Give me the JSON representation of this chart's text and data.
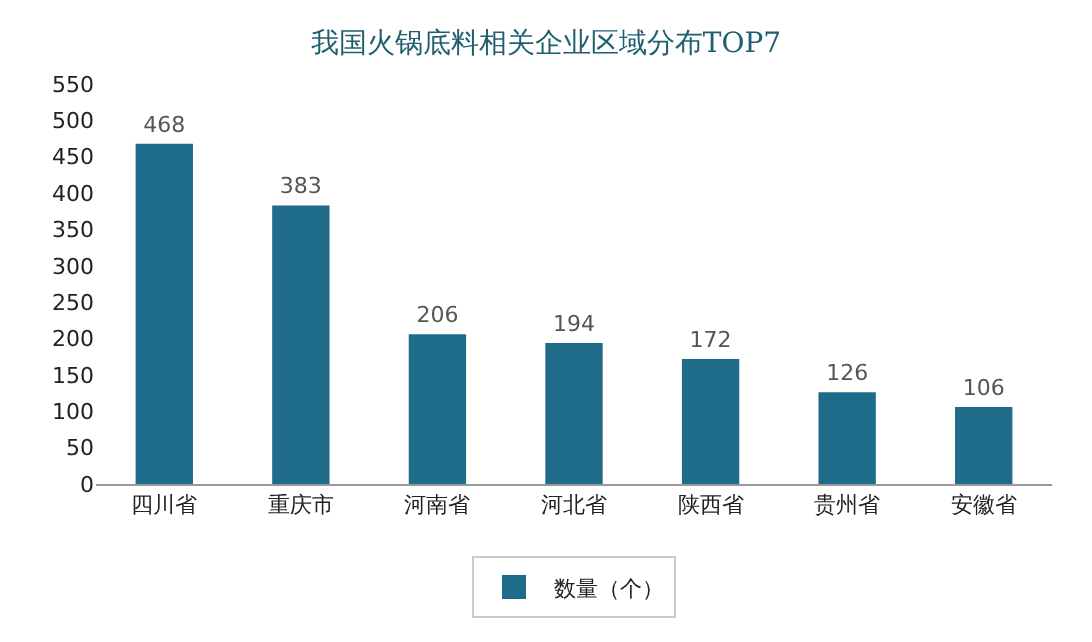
{
  "chart_data": {
    "type": "bar",
    "title": "我国火锅底料相关企业区域分布TOP7",
    "categories": [
      "四川省",
      "重庆市",
      "河南省",
      "河北省",
      "陕西省",
      "贵州省",
      "安徽省"
    ],
    "series": [
      {
        "name": "数量（个）",
        "color": "#1f6b8a",
        "values": [
          468,
          383,
          206,
          194,
          172,
          126,
          106
        ]
      }
    ],
    "ylim": [
      0,
      550
    ],
    "yticks": [
      0,
      50,
      100,
      150,
      200,
      250,
      300,
      350,
      400,
      450,
      500,
      550
    ],
    "data_labels": true,
    "legend": "bottom",
    "grid": false
  }
}
